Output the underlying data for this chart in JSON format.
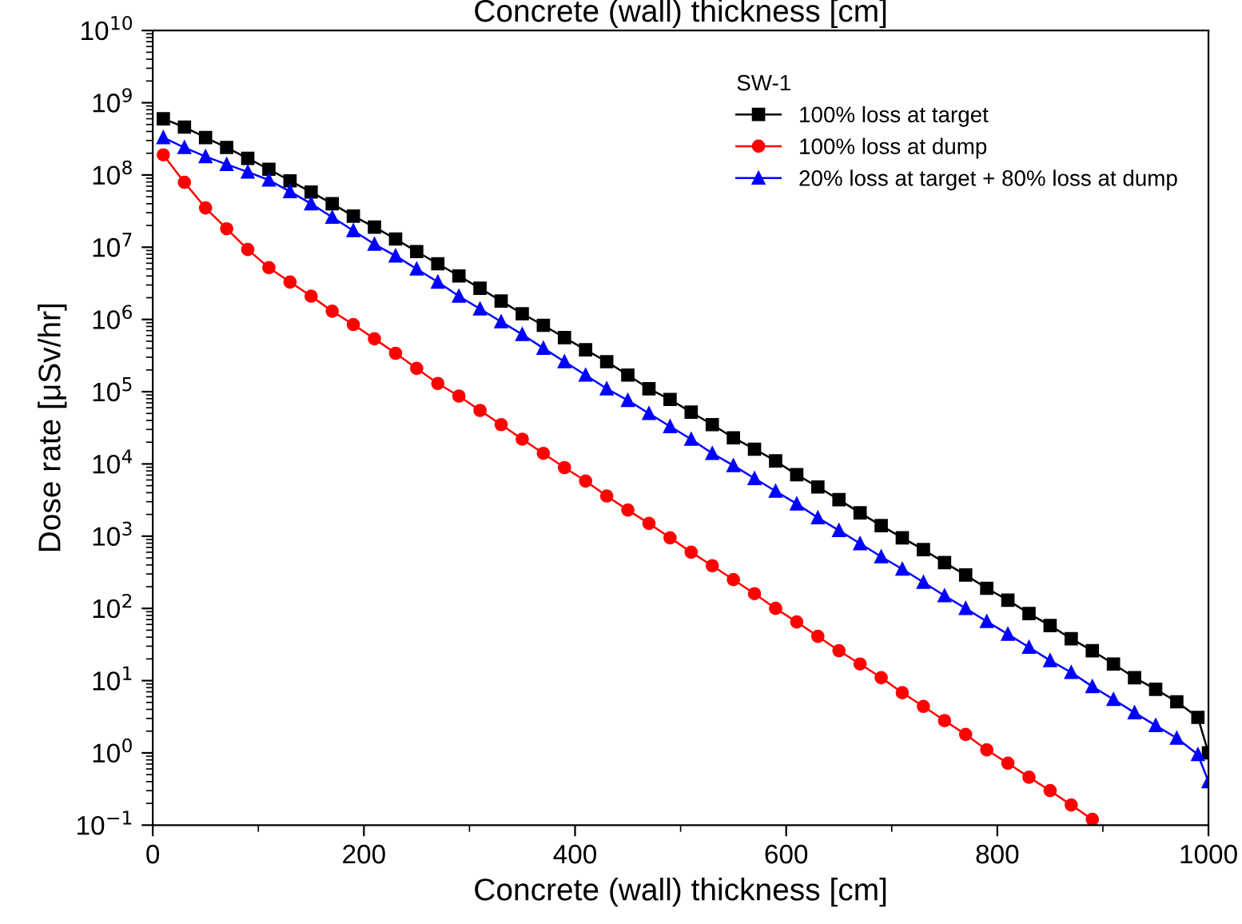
{
  "chart_data": {
    "type": "line",
    "title": "Concrete (wall) thickness [cm]",
    "xlabel": "Concrete (wall) thickness [cm]",
    "ylabel": "Dose rate [μSv/hr]",
    "legend_title": "SW-1",
    "legend": "top right",
    "log": "y",
    "xlim": [
      0,
      1000
    ],
    "xticks": [
      0,
      200,
      400,
      600,
      800,
      1000
    ],
    "ylim": [
      0.1,
      10000000000.0
    ],
    "yticks": [
      {
        "value": 0.1,
        "label": "10$^{−1}$"
      },
      {
        "value": 1,
        "label": "10$^{0}$"
      },
      {
        "value": 10,
        "label": "10$^{1}$"
      },
      {
        "value": 100,
        "label": "10$^{2}$"
      },
      {
        "value": 1000,
        "label": "10$^{3}$"
      },
      {
        "value": 10000,
        "label": "10$^{4}$"
      },
      {
        "value": 100000,
        "label": "10$^{5}$"
      },
      {
        "value": 1000000,
        "label": "10$^{6}$"
      },
      {
        "value": 10000000,
        "label": "10$^{7}$"
      },
      {
        "value": 100000000,
        "label": "10$^{8}$"
      },
      {
        "value": 1000000000,
        "label": "10$^{9}$"
      },
      {
        "value": 10000000000,
        "label": "10$^{10}$"
      }
    ],
    "grid": false,
    "x": [
      10,
      30,
      50,
      70,
      90,
      110,
      130,
      150,
      170,
      190,
      210,
      230,
      250,
      270,
      290,
      310,
      330,
      350,
      370,
      390,
      410,
      430,
      450,
      470,
      490,
      510,
      530,
      550,
      570,
      590,
      610,
      630,
      650,
      670,
      690,
      710,
      730,
      750,
      770,
      790,
      810,
      830,
      850,
      870,
      890,
      910,
      930,
      950,
      970,
      990,
      1000
    ],
    "series": [
      {
        "name": "100% loss at target",
        "color": "#000000",
        "marker": "square",
        "values": [
          600000000.0,
          460000000.0,
          330000000.0,
          240000000.0,
          170000000.0,
          120000000.0,
          83000000.0,
          58000000.0,
          40000000.0,
          27000000.0,
          19000000.0,
          13000000.0,
          8700000.0,
          5900000.0,
          4000000.0,
          2700000.0,
          1800000.0,
          1200000.0,
          830000.0,
          560000.0,
          380000.0,
          260000.0,
          170000.0,
          110000.0,
          78000.0,
          52000.0,
          35000.0,
          23000.0,
          16000.0,
          11000.0,
          7100.0,
          4800.0,
          3200.0,
          2100.0,
          1400.0,
          950,
          650,
          430,
          290,
          190,
          130,
          85,
          58,
          38,
          26,
          17,
          11,
          7.6,
          5.1,
          3.1,
          1.0
        ]
      },
      {
        "name": "100% loss at dump",
        "color": "#ff0000",
        "marker": "circle",
        "x": [
          10,
          30,
          50,
          70,
          90,
          110,
          130,
          150,
          170,
          190,
          210,
          230,
          250,
          270,
          290,
          310,
          330,
          350,
          370,
          390,
          410,
          430,
          450,
          470,
          490,
          510,
          530,
          550,
          570,
          590,
          610,
          630,
          650,
          670,
          690,
          710,
          730,
          750,
          770,
          790,
          810,
          830,
          850,
          870,
          890
        ],
        "values": [
          190000000.0,
          79000000.0,
          35000000.0,
          18000000.0,
          9300000.0,
          5200000.0,
          3300000.0,
          2100000.0,
          1300000.0,
          850000.0,
          540000.0,
          340000.0,
          210000.0,
          130000.0,
          87000.0,
          55000.0,
          35000.0,
          22000.0,
          14000.0,
          8900.0,
          5800.0,
          3600.0,
          2300.0,
          1500.0,
          950,
          600,
          390,
          250,
          160,
          100,
          65,
          41,
          26,
          17,
          11,
          6.8,
          4.4,
          2.8,
          1.8,
          1.1,
          0.72,
          0.46,
          0.3,
          0.19,
          0.12
        ]
      },
      {
        "name": "20% loss at target + 80% loss at dump",
        "color": "#0000ff",
        "marker": "triangle",
        "values": [
          330000000.0,
          240000000.0,
          180000000.0,
          140000000.0,
          110000000.0,
          85000000.0,
          59000000.0,
          40000000.0,
          26000000.0,
          17000000.0,
          11000000.0,
          7600000.0,
          5000000.0,
          3300000.0,
          2100000.0,
          1400000.0,
          930000.0,
          620000.0,
          400000.0,
          260000.0,
          170000.0,
          110000.0,
          76000.0,
          50000.0,
          33000.0,
          22000.0,
          14000.0,
          9500.0,
          6300.0,
          4200.0,
          2800.0,
          1800.0,
          1200.0,
          790,
          520,
          350,
          230,
          150,
          100,
          66,
          44,
          29,
          19,
          13,
          8.3,
          5.5,
          3.6,
          2.4,
          1.6,
          0.95,
          0.4
        ]
      }
    ]
  }
}
